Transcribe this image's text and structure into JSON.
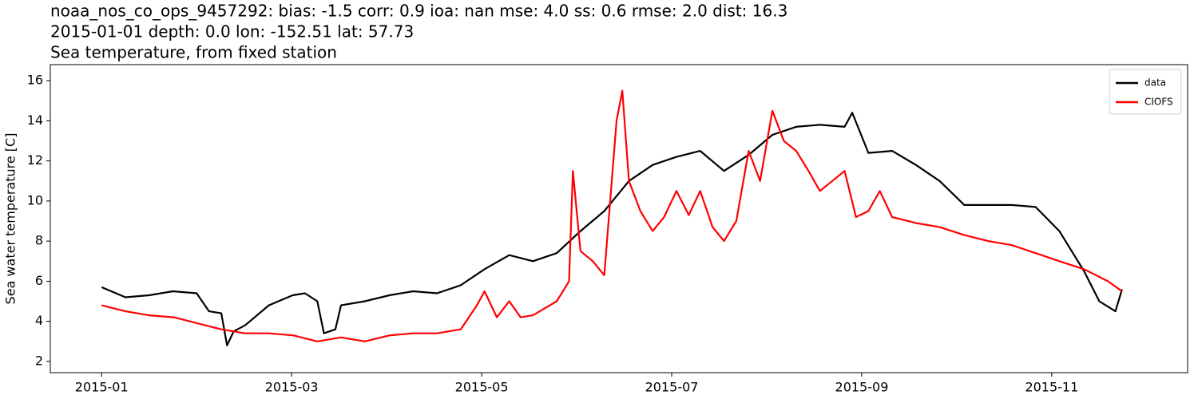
{
  "chart_data": {
    "type": "line",
    "title": [
      "noaa_nos_co_ops_9457292: bias: -1.5  corr: 0.9  ioa: nan  mse: 4.0  ss: 0.6  rmse: 2.0  dist: 16.3",
      "2015-01-01 depth: 0.0 lon: -152.51 lat: 57.73",
      "Sea temperature, from fixed station"
    ],
    "ylabel": "Sea water temperature [C]",
    "xlim": [
      -0.54,
      11.43
    ],
    "ylim": [
      1.44,
      16.8
    ],
    "xticks": [
      {
        "value": 0,
        "label": "2015-01"
      },
      {
        "value": 2,
        "label": "2015-03"
      },
      {
        "value": 4,
        "label": "2015-05"
      },
      {
        "value": 6,
        "label": "2015-07"
      },
      {
        "value": 8,
        "label": "2015-09"
      },
      {
        "value": 10,
        "label": "2015-11"
      }
    ],
    "yticks": [
      2,
      4,
      6,
      8,
      10,
      12,
      14,
      16
    ],
    "legend": "upper right",
    "series": [
      {
        "name": "data",
        "color": "#000000",
        "x": [
          0,
          0.25,
          0.5,
          0.75,
          1.0,
          1.13,
          1.26,
          1.32,
          1.39,
          1.51,
          1.76,
          2.01,
          2.14,
          2.27,
          2.34,
          2.46,
          2.52,
          2.77,
          3.03,
          3.28,
          3.53,
          3.78,
          4.03,
          4.29,
          4.54,
          4.79,
          5.04,
          5.29,
          5.55,
          5.8,
          6.05,
          6.3,
          6.55,
          6.81,
          7.06,
          7.31,
          7.56,
          7.82,
          7.9,
          8.07,
          8.32,
          8.57,
          8.82,
          9.08,
          9.33,
          9.58,
          9.83,
          10.08,
          10.34,
          10.5,
          10.67,
          10.74
        ],
        "values": [
          5.7,
          5.2,
          5.3,
          5.5,
          5.4,
          4.5,
          4.4,
          2.8,
          3.5,
          3.8,
          4.8,
          5.3,
          5.4,
          5.0,
          3.4,
          3.6,
          4.8,
          5.0,
          5.3,
          5.5,
          5.4,
          5.8,
          6.6,
          7.3,
          7.0,
          7.4,
          8.5,
          9.5,
          11.0,
          11.8,
          12.2,
          12.5,
          11.5,
          12.3,
          13.3,
          13.7,
          13.8,
          13.7,
          14.4,
          12.4,
          12.5,
          11.8,
          11.0,
          9.8,
          9.8,
          9.8,
          9.7,
          8.5,
          6.5,
          5.0,
          4.5,
          5.6
        ]
      },
      {
        "name": "CIOFS",
        "color": "#ff0000",
        "x": [
          0,
          0.25,
          0.5,
          0.76,
          1.01,
          1.26,
          1.51,
          1.76,
          2.02,
          2.27,
          2.52,
          2.77,
          3.03,
          3.28,
          3.53,
          3.78,
          3.95,
          4.03,
          4.16,
          4.29,
          4.41,
          4.54,
          4.79,
          4.92,
          4.96,
          5.04,
          5.17,
          5.29,
          5.42,
          5.48,
          5.55,
          5.67,
          5.8,
          5.92,
          6.05,
          6.18,
          6.3,
          6.43,
          6.55,
          6.68,
          6.81,
          6.93,
          7.06,
          7.18,
          7.31,
          7.44,
          7.56,
          7.69,
          7.82,
          7.94,
          8.07,
          8.19,
          8.32,
          8.57,
          8.82,
          9.08,
          9.33,
          9.58,
          9.83,
          10.08,
          10.34,
          10.59,
          10.74
        ],
        "values": [
          4.8,
          4.5,
          4.3,
          4.2,
          3.9,
          3.6,
          3.4,
          3.4,
          3.3,
          3.0,
          3.2,
          3.0,
          3.3,
          3.4,
          3.4,
          3.6,
          4.8,
          5.5,
          4.2,
          5.0,
          4.2,
          4.3,
          5.0,
          6.0,
          11.5,
          7.5,
          7.0,
          6.3,
          14.0,
          15.5,
          11.0,
          9.5,
          8.5,
          9.2,
          10.5,
          9.3,
          10.5,
          8.7,
          8.0,
          9.0,
          12.5,
          11.0,
          14.5,
          13.0,
          12.5,
          11.5,
          10.5,
          11.0,
          11.5,
          9.2,
          9.5,
          10.5,
          9.2,
          8.9,
          8.7,
          8.3,
          8.0,
          7.8,
          7.4,
          7.0,
          6.6,
          6.0,
          5.5
        ]
      }
    ]
  }
}
